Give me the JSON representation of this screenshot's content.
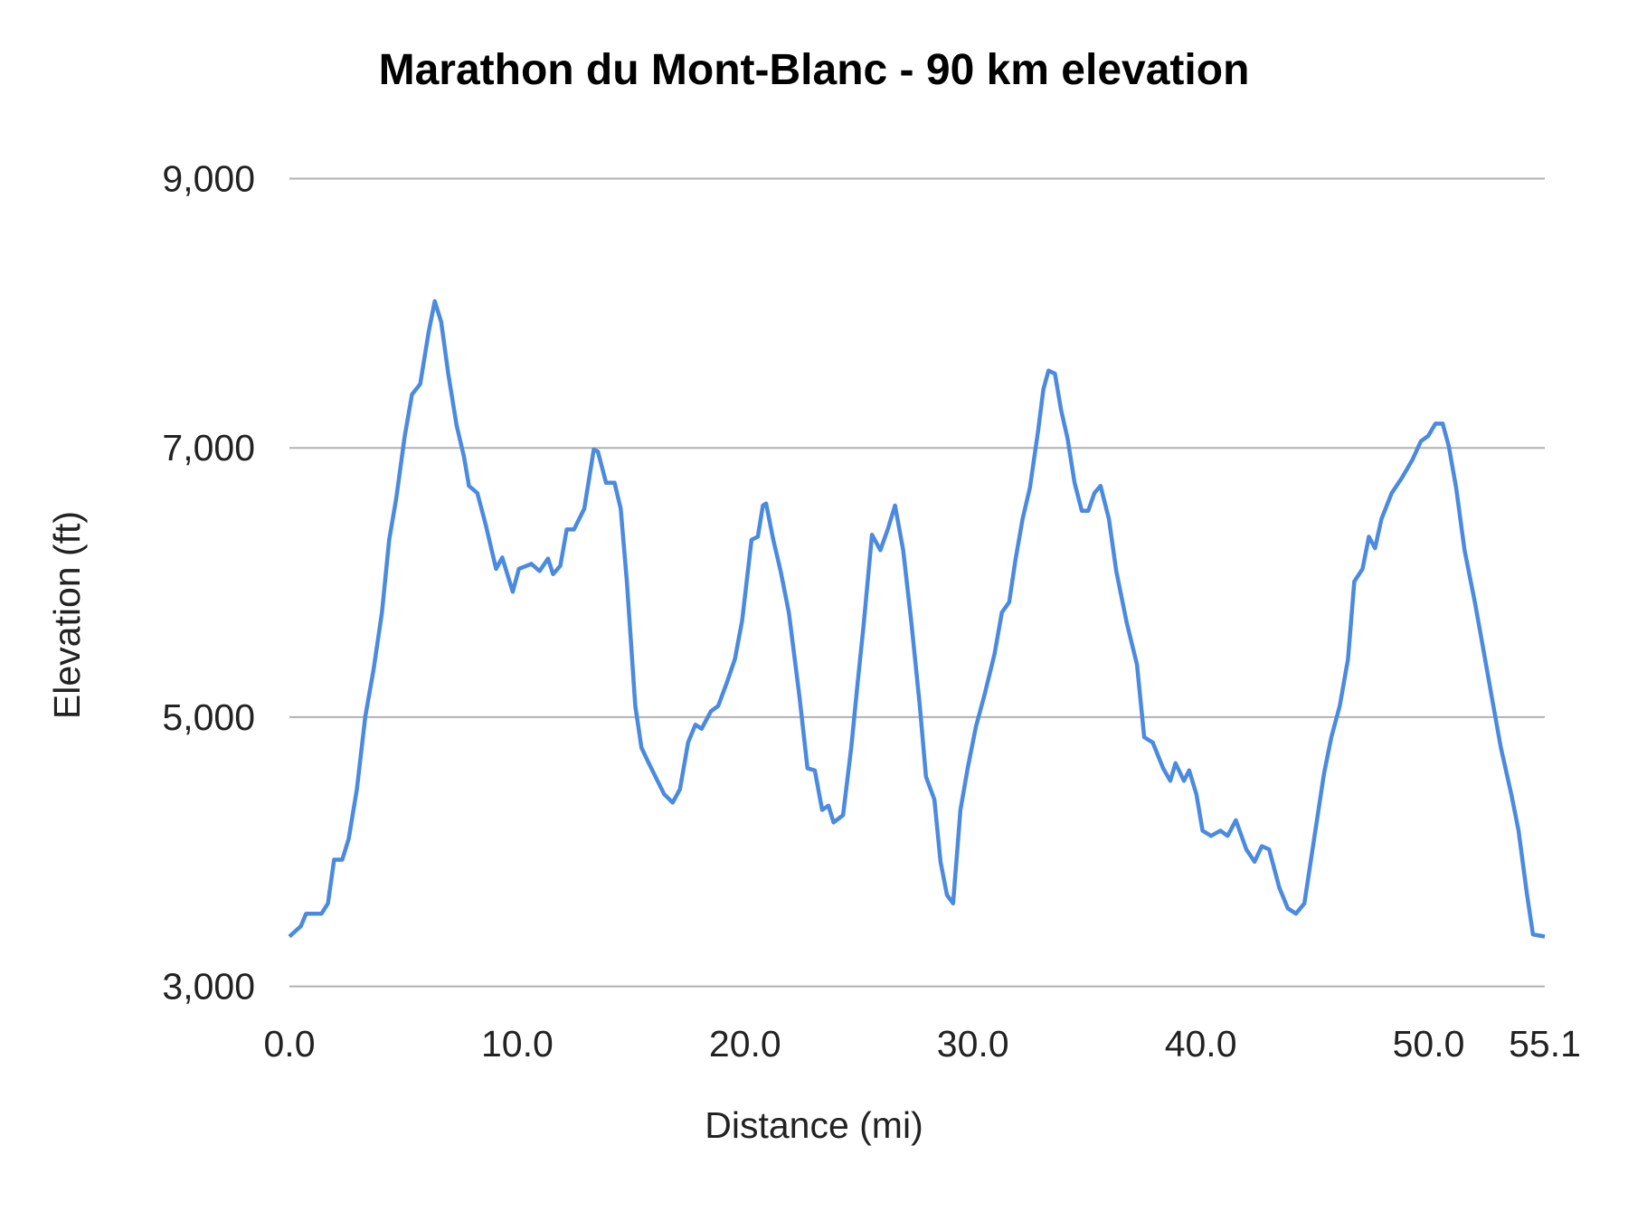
{
  "chart_data": {
    "type": "line",
    "title": "Marathon du Mont-Blanc - 90 km elevation",
    "xlabel": "Distance (mi)",
    "ylabel": "Elevation (ft)",
    "xlim": [
      0,
      55.1
    ],
    "ylim": [
      3000,
      9000
    ],
    "x_ticks": [
      0,
      10,
      20,
      30,
      40,
      50,
      55.1
    ],
    "x_tick_labels": [
      "0.0",
      "10.0",
      "20.0",
      "30.0",
      "40.0",
      "50.0",
      "55.1"
    ],
    "y_ticks": [
      3000,
      5000,
      7000,
      9000
    ],
    "y_tick_labels": [
      "3,000",
      "5,000",
      "7,000",
      "9,000"
    ],
    "grid": "horizontal",
    "legend": "none",
    "line_color": "#4a8ae0",
    "series": [
      {
        "x": [
          0,
          0.5,
          0.73,
          1.41,
          1.69,
          1.96,
          2.32,
          2.6,
          2.96,
          3.33,
          3.69,
          4.06,
          4.38,
          4.69,
          5.06,
          5.38,
          5.74,
          6.11,
          6.38,
          6.66,
          6.97,
          7.34,
          7.66,
          7.88,
          8.25,
          8.61,
          9.07,
          9.34,
          9.8,
          10.07,
          10.62,
          10.98,
          11.35,
          11.57,
          11.89,
          12.17,
          12.49,
          12.94,
          13.36,
          13.54,
          13.9,
          14.27,
          14.54,
          14.81,
          15.18,
          15.45,
          15.77,
          16.45,
          16.82,
          17.14,
          17.5,
          17.82,
          18.09,
          18.5,
          18.82,
          19.19,
          19.55,
          19.87,
          20.28,
          20.56,
          20.78,
          20.92,
          21.24,
          21.56,
          21.92,
          22.38,
          22.74,
          23.06,
          23.38,
          23.66,
          23.88,
          24.3,
          24.66,
          24.93,
          25.21,
          25.57,
          25.94,
          26.26,
          26.58,
          26.94,
          27.3,
          27.67,
          27.94,
          28.31,
          28.58,
          28.86,
          29.13,
          29.45,
          29.77,
          30.13,
          30.5,
          30.95,
          31.27,
          31.59,
          31.86,
          32.18,
          32.5,
          32.86,
          33.09,
          33.32,
          33.6,
          33.87,
          34.15,
          34.46,
          34.78,
          35.06,
          35.33,
          35.6,
          35.97,
          36.29,
          36.75,
          37.2,
          37.52,
          37.89,
          38.35,
          38.66,
          38.89,
          39.26,
          39.49,
          39.81,
          40.08,
          40.45,
          40.86,
          41.18,
          41.54,
          42.0,
          42.36,
          42.68,
          43.0,
          43.45,
          43.82,
          44.18,
          44.55,
          44.96,
          45.41,
          45.73,
          46.1,
          46.46,
          46.74,
          47.1,
          47.38,
          47.65,
          47.93,
          48.38,
          48.84,
          49.29,
          49.66,
          49.98,
          50.3,
          50.62,
          50.89,
          51.21,
          51.58,
          52.03,
          52.4,
          52.76,
          53.17,
          53.63,
          53.95,
          54.31,
          54.58,
          55.1
        ],
        "y": [
          3370,
          3447,
          3540,
          3540,
          3617,
          3941,
          3941,
          4095,
          4465,
          5005,
          5352,
          5777,
          6317,
          6625,
          7088,
          7397,
          7474,
          7859,
          8090,
          7936,
          7551,
          7165,
          6934,
          6718,
          6664,
          6432,
          6101,
          6186,
          5931,
          6101,
          6139,
          6085,
          6178,
          6062,
          6124,
          6394,
          6394,
          6548,
          6988,
          6972,
          6741,
          6741,
          6548,
          6008,
          5083,
          4774,
          4658,
          4427,
          4365,
          4465,
          4812,
          4944,
          4913,
          5044,
          5083,
          5252,
          5430,
          5715,
          6317,
          6340,
          6572,
          6587,
          6317,
          6085,
          5777,
          5160,
          4620,
          4604,
          4311,
          4342,
          4218,
          4272,
          4774,
          5237,
          5700,
          6355,
          6240,
          6394,
          6572,
          6240,
          5700,
          5083,
          4558,
          4388,
          3926,
          3679,
          3617,
          4311,
          4620,
          4928,
          5160,
          5468,
          5777,
          5854,
          6162,
          6471,
          6703,
          7127,
          7435,
          7574,
          7551,
          7281,
          7072,
          6741,
          6533,
          6533,
          6664,
          6718,
          6471,
          6085,
          5700,
          5391,
          4851,
          4812,
          4620,
          4527,
          4658,
          4527,
          4604,
          4427,
          4157,
          4118,
          4157,
          4118,
          4234,
          4018,
          3926,
          4041,
          4018,
          3733,
          3579,
          3540,
          3617,
          4080,
          4581,
          4851,
          5083,
          5430,
          6008,
          6101,
          6340,
          6255,
          6471,
          6664,
          6780,
          6911,
          7050,
          7088,
          7180,
          7180,
          7011,
          6703,
          6240,
          5854,
          5506,
          5160,
          4774,
          4427,
          4157,
          3694,
          3386,
          3370
        ]
      }
    ]
  }
}
